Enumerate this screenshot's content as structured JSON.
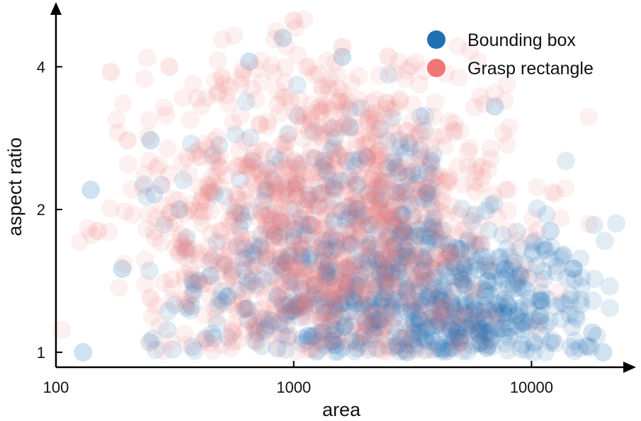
{
  "chart_data": {
    "type": "scatter",
    "title": "",
    "xlabel": "area",
    "ylabel": "aspect ratio",
    "xscale": "log",
    "yscale": "log",
    "xlim": [
      100,
      25000
    ],
    "ylim": [
      0.93,
      5.2
    ],
    "x_ticks": [
      100,
      1000,
      10000
    ],
    "x_tick_labels": [
      "100",
      "1000",
      "10000"
    ],
    "y_ticks": [
      1,
      2,
      4
    ],
    "y_tick_labels": [
      "1",
      "2",
      "4"
    ],
    "grid": false,
    "legend_position": "top-right",
    "series": [
      {
        "name": "Bounding box",
        "color": "#1f6fb4",
        "opacity": 0.13,
        "distribution": {
          "log10_area_mean": 3.45,
          "log10_area_sd": 0.42,
          "log2_ratio_mean": 0.55,
          "log2_ratio_sd": 0.55,
          "n": 900
        },
        "points": [
          {
            "x": 1600,
            "y": 4.2
          },
          {
            "x": 900,
            "y": 4.6
          },
          {
            "x": 650,
            "y": 4.1
          },
          {
            "x": 7000,
            "y": 3.3
          },
          {
            "x": 250,
            "y": 2.8
          },
          {
            "x": 330,
            "y": 2.0
          },
          {
            "x": 140,
            "y": 2.2
          },
          {
            "x": 190,
            "y": 1.5
          },
          {
            "x": 12000,
            "y": 1.8
          },
          {
            "x": 15000,
            "y": 1.5
          },
          {
            "x": 18000,
            "y": 1.1
          },
          {
            "x": 20000,
            "y": 1.0
          },
          {
            "x": 130,
            "y": 1.0
          },
          {
            "x": 5000,
            "y": 1.05
          },
          {
            "x": 6000,
            "y": 1.1
          },
          {
            "x": 8000,
            "y": 1.25
          },
          {
            "x": 9000,
            "y": 1.45
          },
          {
            "x": 3000,
            "y": 1.0
          }
        ]
      },
      {
        "name": "Grasp rectangle",
        "color": "#f07575",
        "opacity": 0.11,
        "distribution": {
          "log10_area_mean": 3.15,
          "log10_area_sd": 0.38,
          "log2_ratio_mean": 0.95,
          "log2_ratio_sd": 0.6,
          "n": 1100
        },
        "points": [
          {
            "x": 1000,
            "y": 5.0
          },
          {
            "x": 1600,
            "y": 4.4
          },
          {
            "x": 2500,
            "y": 4.2
          },
          {
            "x": 300,
            "y": 4.0
          },
          {
            "x": 170,
            "y": 3.9
          },
          {
            "x": 500,
            "y": 3.8
          },
          {
            "x": 200,
            "y": 2.8
          },
          {
            "x": 150,
            "y": 1.8
          },
          {
            "x": 250,
            "y": 1.3
          },
          {
            "x": 550,
            "y": 1.1
          },
          {
            "x": 700,
            "y": 1.05
          },
          {
            "x": 2000,
            "y": 2.5
          },
          {
            "x": 1500,
            "y": 2.2
          }
        ]
      }
    ]
  }
}
